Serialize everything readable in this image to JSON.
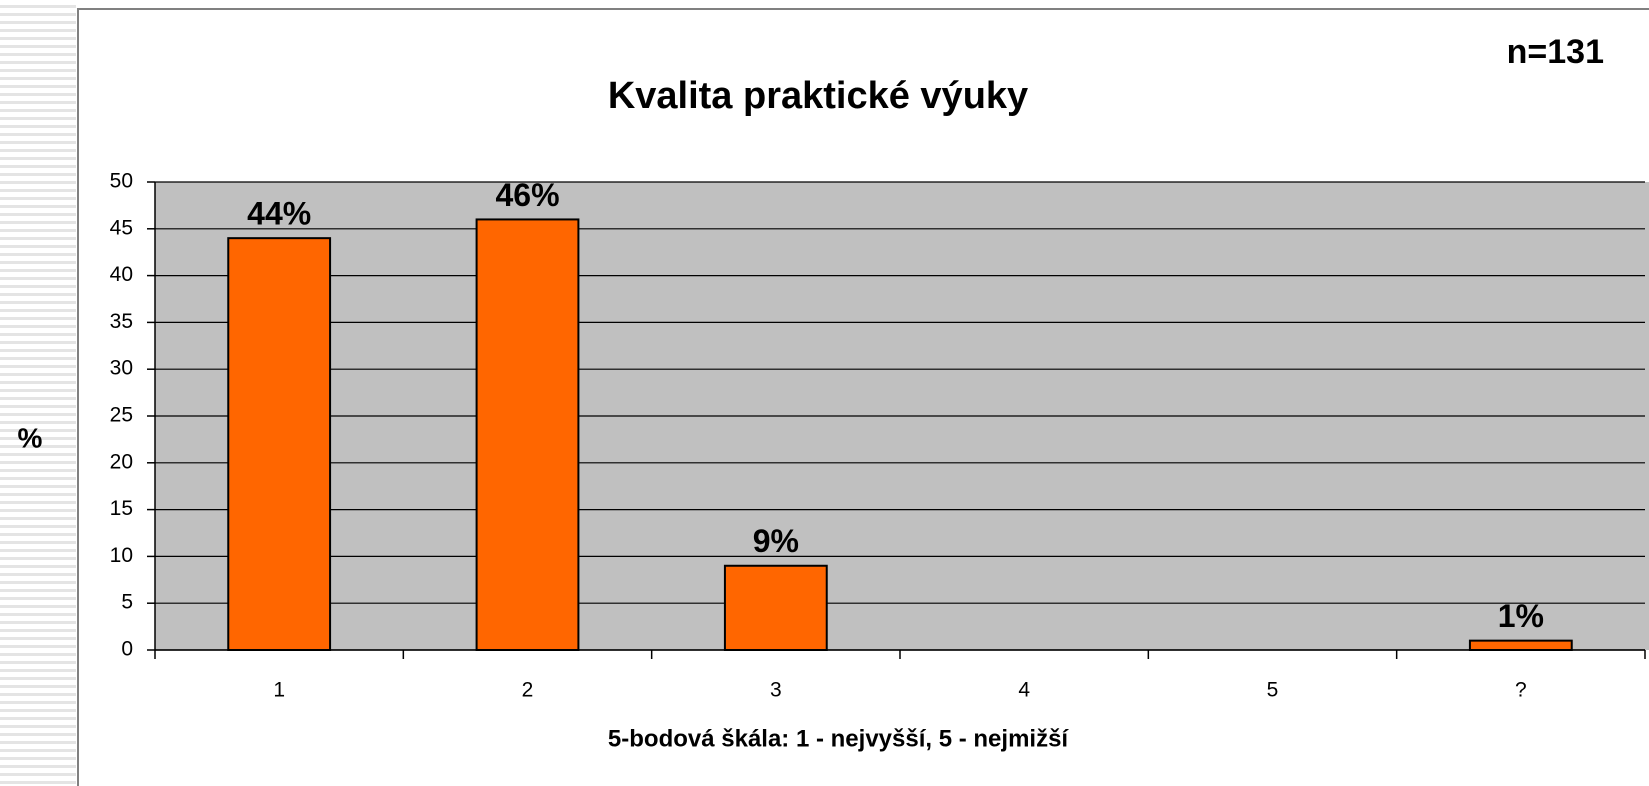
{
  "chart_data": {
    "type": "bar",
    "title": "Kvalita praktické výuky",
    "annotation": "n=131",
    "y_label": "%",
    "x_label": "5-bodová škála: 1 - nejvyšší, 5 - nejmižší",
    "categories": [
      "1",
      "2",
      "3",
      "4",
      "5",
      "?"
    ],
    "values": [
      44,
      46,
      9,
      null,
      null,
      1
    ],
    "value_labels": [
      "44%",
      "46%",
      "9%",
      null,
      null,
      "1%"
    ],
    "color": "#ff6600",
    "ylim": [
      0,
      50
    ],
    "yticks": [
      0,
      5,
      10,
      15,
      20,
      25,
      30,
      35,
      40,
      45,
      50
    ],
    "grid": true
  }
}
